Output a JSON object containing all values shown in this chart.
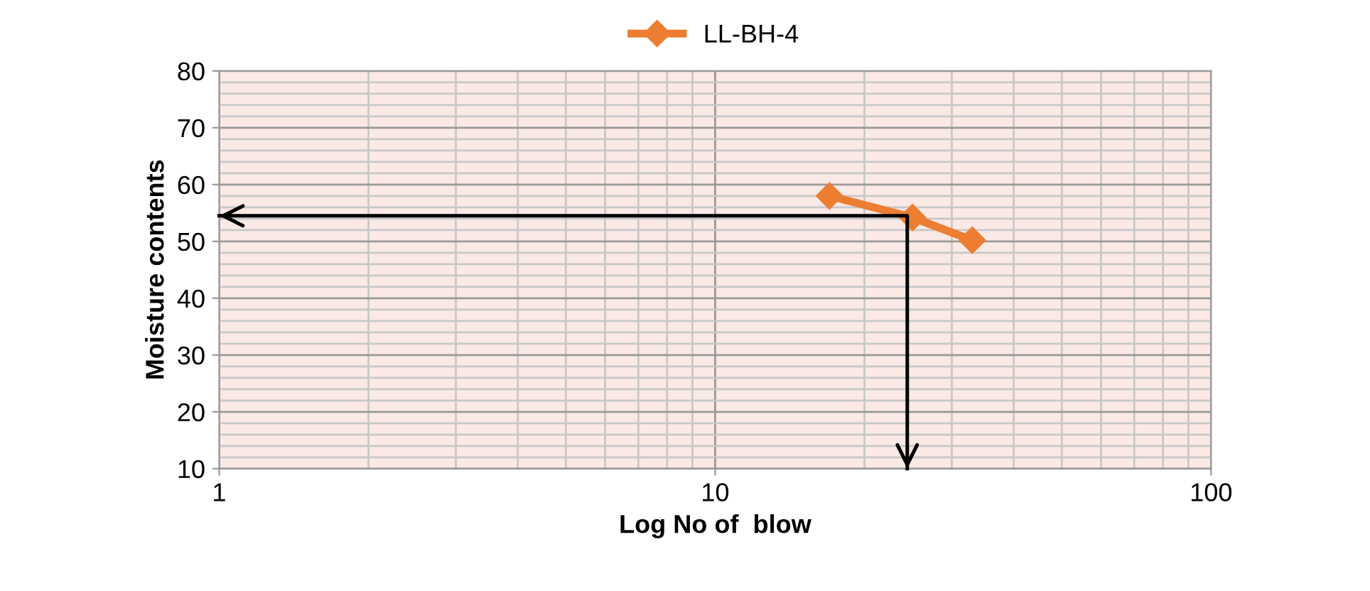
{
  "chart_data": {
    "type": "line",
    "xlabel": "Log No of  blow",
    "ylabel": "Moisture contents",
    "log": "x",
    "series": [
      {
        "name": "LL-BH-4",
        "color": "#ed7d31",
        "x": [
          17,
          25,
          33
        ],
        "values": [
          58,
          54.2,
          50.2
        ]
      },
      {
        "type": "line",
        "color": "#000000",
        "marker": "none",
        "x": [
          1,
          24.4,
          24.4
        ],
        "values": [
          54.5,
          54.5,
          10
        ]
      }
    ],
    "xlim": [
      1,
      100
    ],
    "xticks": [
      1,
      10,
      100
    ],
    "ylim": [
      10,
      80
    ],
    "yticks": [
      10,
      20,
      30,
      40,
      50,
      60,
      70,
      80
    ],
    "grid": true,
    "legend": "top",
    "marker": "diamond",
    "line_style": "solid"
  }
}
